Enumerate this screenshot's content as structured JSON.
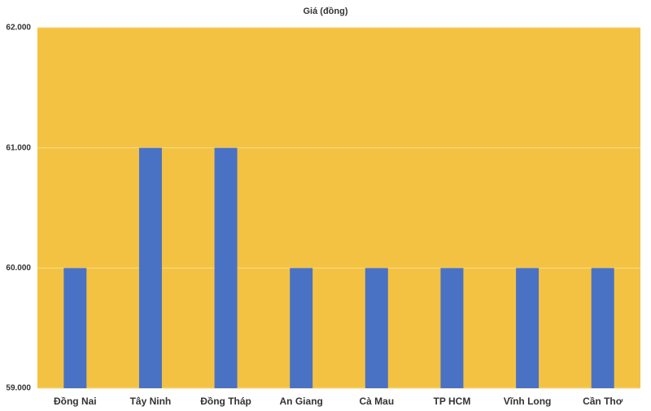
{
  "chart_data": {
    "type": "bar",
    "title": "Giá (đồng)",
    "categories": [
      "Đồng Nai",
      "Tây Ninh",
      "Đồng Tháp",
      "An Giang",
      "Cà Mau",
      "TP HCM",
      "Vĩnh Long",
      "Cần Thơ"
    ],
    "values": [
      60000,
      61000,
      61000,
      60000,
      60000,
      60000,
      60000,
      60000
    ],
    "color": "#4a72c4",
    "plot_background": "#f4c242",
    "ylim": [
      59000,
      62000
    ],
    "yticks": [
      {
        "value": 59000,
        "label": "59.000"
      },
      {
        "value": 60000,
        "label": "60.000"
      },
      {
        "value": 61000,
        "label": "61.000"
      },
      {
        "value": 62000,
        "label": "62.000"
      }
    ],
    "grid": true
  }
}
